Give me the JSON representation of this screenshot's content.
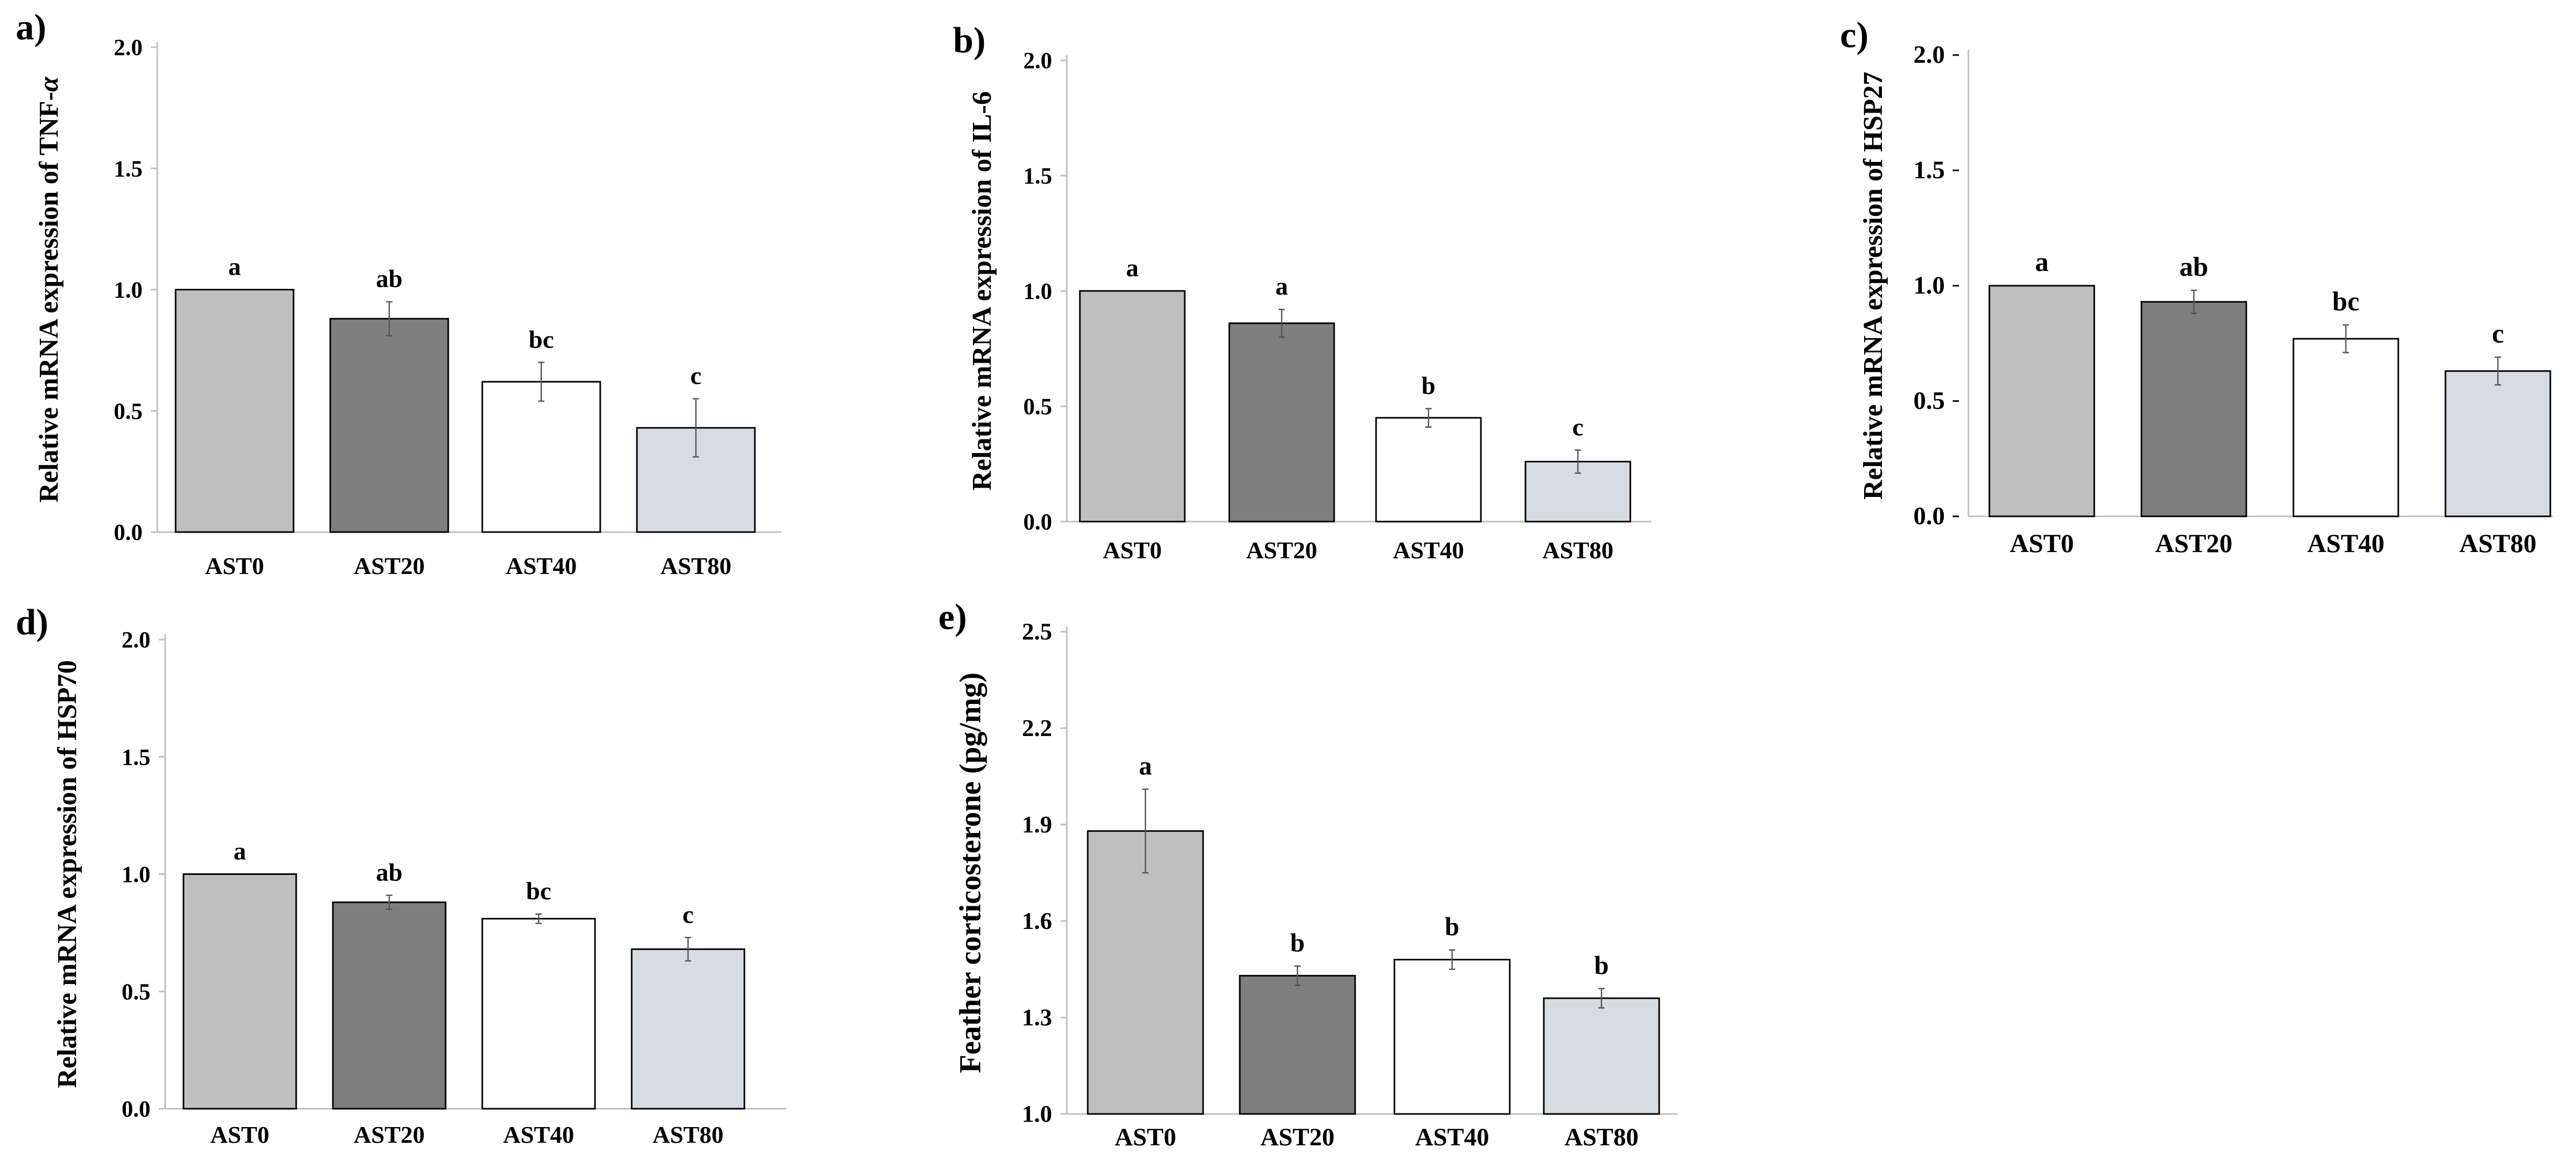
{
  "chart_data": [
    {
      "panel": "a)",
      "type": "bar",
      "ylabel": "Relative mRNA expression of TNF-",
      "ylabel_italic": "α",
      "ylim": [
        0,
        2.0
      ],
      "yticks": [
        "0.0",
        "0.5",
        "1.0",
        "1.5",
        "2.0"
      ],
      "categories": [
        "AST0",
        "AST20",
        "AST40",
        "AST80"
      ],
      "values": [
        1.0,
        0.88,
        0.62,
        0.43
      ],
      "errors": [
        0.0,
        0.07,
        0.08,
        0.12
      ],
      "letters": [
        "a",
        "ab",
        "bc",
        "c"
      ],
      "colors": [
        "#bfbfbf",
        "#7f7f7f",
        "#ffffff",
        "#d6dce4"
      ]
    },
    {
      "panel": "b)",
      "type": "bar",
      "ylabel": "Relative mRNA expression of IL-6",
      "ylim": [
        0,
        2.0
      ],
      "yticks": [
        "0.0",
        "0.5",
        "1.0",
        "1.5",
        "2.0"
      ],
      "categories": [
        "AST0",
        "AST20",
        "AST40",
        "AST80"
      ],
      "values": [
        1.0,
        0.86,
        0.45,
        0.26
      ],
      "errors": [
        0.0,
        0.06,
        0.04,
        0.05
      ],
      "letters": [
        "a",
        "a",
        "b",
        "c"
      ],
      "colors": [
        "#bfbfbf",
        "#7f7f7f",
        "#ffffff",
        "#d6dce4"
      ]
    },
    {
      "panel": "c)",
      "type": "bar",
      "ylabel": "Relative mRNA expression of HSP27",
      "ylim": [
        0,
        2.0
      ],
      "yticks": [
        "0.0",
        "0.5",
        "1.0",
        "1.5",
        "2.0"
      ],
      "categories": [
        "AST0",
        "AST20",
        "AST40",
        "AST80"
      ],
      "values": [
        1.0,
        0.93,
        0.77,
        0.63
      ],
      "errors": [
        0.0,
        0.05,
        0.06,
        0.06
      ],
      "letters": [
        "a",
        "ab",
        "bc",
        "c"
      ],
      "colors": [
        "#bfbfbf",
        "#7f7f7f",
        "#ffffff",
        "#d6dce4"
      ]
    },
    {
      "panel": "d)",
      "type": "bar",
      "ylabel": "Relative mRNA expression of HSP70",
      "ylim": [
        0,
        2.0
      ],
      "yticks": [
        "0.0",
        "0.5",
        "1.0",
        "1.5",
        "2.0"
      ],
      "categories": [
        "AST0",
        "AST20",
        "AST40",
        "AST80"
      ],
      "values": [
        1.0,
        0.88,
        0.81,
        0.68
      ],
      "errors": [
        0.0,
        0.03,
        0.02,
        0.05
      ],
      "letters": [
        "a",
        "ab",
        "bc",
        "c"
      ],
      "colors": [
        "#bfbfbf",
        "#7f7f7f",
        "#ffffff",
        "#d6dce4"
      ]
    },
    {
      "panel": "e)",
      "type": "bar",
      "ylabel": "Feather corticosterone (pg/mg)",
      "ylim": [
        1.0,
        2.5
      ],
      "yticks": [
        "1.0",
        "1.3",
        "1.6",
        "1.9",
        "2.2",
        "2.5"
      ],
      "categories": [
        "AST0",
        "AST20",
        "AST40",
        "AST80"
      ],
      "values": [
        1.88,
        1.43,
        1.48,
        1.36
      ],
      "errors": [
        0.13,
        0.03,
        0.03,
        0.03
      ],
      "letters": [
        "a",
        "b",
        "b",
        "b"
      ],
      "colors": [
        "#bfbfbf",
        "#7f7f7f",
        "#ffffff",
        "#d6dce4"
      ]
    }
  ]
}
